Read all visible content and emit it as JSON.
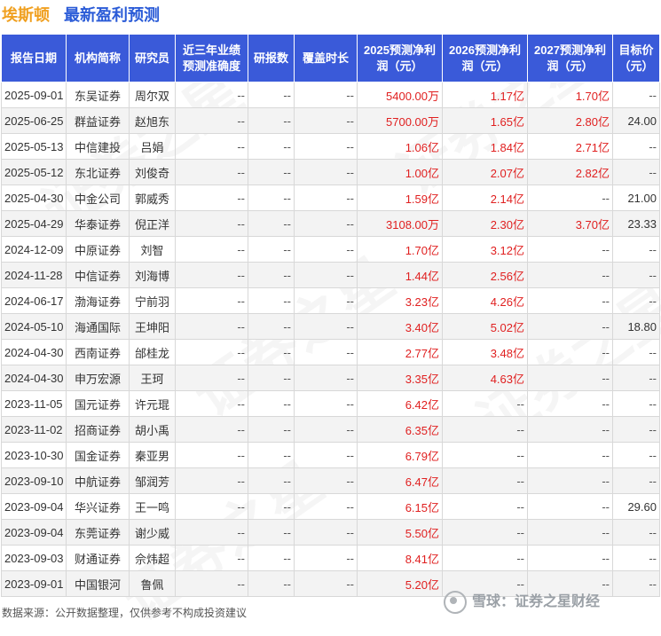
{
  "title": {
    "company": "埃斯顿",
    "main": "最新盈利预测"
  },
  "columns": [
    "报告日期",
    "机构简称",
    "研究员",
    "近三年业绩预测准确度",
    "研报数",
    "覆盖时长",
    "2025预测净利润（元）",
    "2026预测净利润（元）",
    "2027预测净利润（元）",
    "目标价（元）"
  ],
  "rows": [
    {
      "date": "2025-09-01",
      "org": "东吴证券",
      "researcher": "周尔双",
      "accuracy": "--",
      "reports": "--",
      "coverage": "--",
      "p2025": "5400.00万",
      "p2026": "1.17亿",
      "p2027": "1.70亿",
      "target": "--"
    },
    {
      "date": "2025-06-25",
      "org": "群益证券",
      "researcher": "赵旭东",
      "accuracy": "--",
      "reports": "--",
      "coverage": "--",
      "p2025": "5700.00万",
      "p2026": "1.65亿",
      "p2027": "2.80亿",
      "target": "24.00"
    },
    {
      "date": "2025-05-13",
      "org": "中信建投",
      "researcher": "吕娟",
      "accuracy": "--",
      "reports": "--",
      "coverage": "--",
      "p2025": "1.06亿",
      "p2026": "1.84亿",
      "p2027": "2.71亿",
      "target": "--"
    },
    {
      "date": "2025-05-12",
      "org": "东北证券",
      "researcher": "刘俊奇",
      "accuracy": "--",
      "reports": "--",
      "coverage": "--",
      "p2025": "1.00亿",
      "p2026": "2.07亿",
      "p2027": "2.82亿",
      "target": "--"
    },
    {
      "date": "2025-04-30",
      "org": "中金公司",
      "researcher": "郭威秀",
      "accuracy": "--",
      "reports": "--",
      "coverage": "--",
      "p2025": "1.59亿",
      "p2026": "2.14亿",
      "p2027": "--",
      "target": "21.00"
    },
    {
      "date": "2025-04-29",
      "org": "华泰证券",
      "researcher": "倪正洋",
      "accuracy": "--",
      "reports": "--",
      "coverage": "--",
      "p2025": "3108.00万",
      "p2026": "2.30亿",
      "p2027": "3.70亿",
      "target": "23.33"
    },
    {
      "date": "2024-12-09",
      "org": "中原证券",
      "researcher": "刘智",
      "accuracy": "--",
      "reports": "--",
      "coverage": "--",
      "p2025": "1.70亿",
      "p2026": "3.12亿",
      "p2027": "--",
      "target": "--"
    },
    {
      "date": "2024-11-28",
      "org": "中信证券",
      "researcher": "刘海博",
      "accuracy": "--",
      "reports": "--",
      "coverage": "--",
      "p2025": "1.44亿",
      "p2026": "2.56亿",
      "p2027": "--",
      "target": "--"
    },
    {
      "date": "2024-06-17",
      "org": "渤海证券",
      "researcher": "宁前羽",
      "accuracy": "--",
      "reports": "--",
      "coverage": "--",
      "p2025": "3.23亿",
      "p2026": "4.26亿",
      "p2027": "--",
      "target": "--"
    },
    {
      "date": "2024-05-10",
      "org": "海通国际",
      "researcher": "王坤阳",
      "accuracy": "--",
      "reports": "--",
      "coverage": "--",
      "p2025": "3.40亿",
      "p2026": "5.02亿",
      "p2027": "--",
      "target": "18.80"
    },
    {
      "date": "2024-04-30",
      "org": "西南证券",
      "researcher": "邰桂龙",
      "accuracy": "--",
      "reports": "--",
      "coverage": "--",
      "p2025": "2.77亿",
      "p2026": "3.48亿",
      "p2027": "--",
      "target": "--"
    },
    {
      "date": "2024-04-30",
      "org": "申万宏源",
      "researcher": "王珂",
      "accuracy": "--",
      "reports": "--",
      "coverage": "--",
      "p2025": "3.35亿",
      "p2026": "4.63亿",
      "p2027": "--",
      "target": "--"
    },
    {
      "date": "2023-11-05",
      "org": "国元证券",
      "researcher": "许元琨",
      "accuracy": "--",
      "reports": "--",
      "coverage": "--",
      "p2025": "6.42亿",
      "p2026": "--",
      "p2027": "--",
      "target": "--"
    },
    {
      "date": "2023-11-02",
      "org": "招商证券",
      "researcher": "胡小禹",
      "accuracy": "--",
      "reports": "--",
      "coverage": "--",
      "p2025": "6.35亿",
      "p2026": "--",
      "p2027": "--",
      "target": "--"
    },
    {
      "date": "2023-10-30",
      "org": "国金证券",
      "researcher": "秦亚男",
      "accuracy": "--",
      "reports": "--",
      "coverage": "--",
      "p2025": "6.79亿",
      "p2026": "--",
      "p2027": "--",
      "target": "--"
    },
    {
      "date": "2023-09-10",
      "org": "中航证券",
      "researcher": "邹润芳",
      "accuracy": "--",
      "reports": "--",
      "coverage": "--",
      "p2025": "6.47亿",
      "p2026": "--",
      "p2027": "--",
      "target": "--"
    },
    {
      "date": "2023-09-04",
      "org": "华兴证券",
      "researcher": "王一鸣",
      "accuracy": "--",
      "reports": "--",
      "coverage": "--",
      "p2025": "6.15亿",
      "p2026": "--",
      "p2027": "--",
      "target": "29.60"
    },
    {
      "date": "2023-09-04",
      "org": "东莞证券",
      "researcher": "谢少威",
      "accuracy": "--",
      "reports": "--",
      "coverage": "--",
      "p2025": "5.50亿",
      "p2026": "--",
      "p2027": "--",
      "target": "--"
    },
    {
      "date": "2023-09-03",
      "org": "财通证券",
      "researcher": "佘炜超",
      "accuracy": "--",
      "reports": "--",
      "coverage": "--",
      "p2025": "8.41亿",
      "p2026": "--",
      "p2027": "--",
      "target": "--"
    },
    {
      "date": "2023-09-01",
      "org": "中国银河",
      "researcher": "鲁佩",
      "accuracy": "--",
      "reports": "--",
      "coverage": "--",
      "p2025": "5.20亿",
      "p2026": "--",
      "p2027": "--",
      "target": "--"
    }
  ],
  "footer": {
    "source": "数据来源：公开数据整理，仅供参考不构成投资建议",
    "brand": "雪球：证券之星财经"
  },
  "watermark_text": "证券之星",
  "colors": {
    "header_bg": "#3a5ad9",
    "company_title": "#f0a020",
    "main_title": "#2a5bd7",
    "value_red": "#e02020"
  }
}
